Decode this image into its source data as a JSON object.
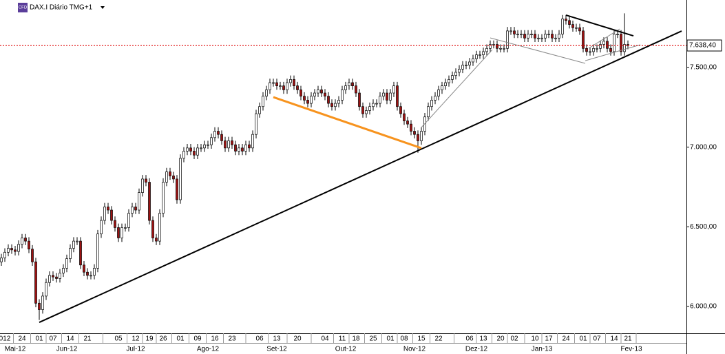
{
  "chart_data": {
    "type": "candlestick",
    "title": "DAX.I Diário TMG+1",
    "badge": "CFD",
    "up_color": "#ffffff",
    "down_color": "#9b1111",
    "wick_color": "#000000",
    "open": [
      6280,
      6305,
      6340,
      6365,
      6355,
      6345,
      6390,
      6430,
      6410,
      6360,
      6280,
      6020,
      5980,
      6065,
      6150,
      6195,
      6185,
      6175,
      6210,
      6240,
      6300,
      6365,
      6410,
      6410,
      6260,
      6215,
      6195,
      6195,
      6240,
      6455,
      6540,
      6625,
      6605,
      6540,
      6495,
      6430,
      6495,
      6495,
      6585,
      6625,
      6605,
      6715,
      6800,
      6780,
      6540,
      6430,
      6410,
      6585,
      6780,
      6845,
      6820,
      6800,
      6670,
      6930,
      6975,
      6995,
      6975,
      6950,
      6995,
      6995,
      7015,
      7015,
      7060,
      7100,
      7080,
      7040,
      6995,
      7040,
      7015,
      6975,
      6995,
      6975,
      7015,
      6995,
      7080,
      7210,
      7255,
      7320,
      7360,
      7405,
      7405,
      7385,
      7385,
      7360,
      7405,
      7425,
      7385,
      7360,
      7320,
      7295,
      7275,
      7320,
      7340,
      7360,
      7340,
      7320,
      7275,
      7255,
      7275,
      7295,
      7360,
      7385,
      7405,
      7385,
      7340,
      7255,
      7210,
      7230,
      7255,
      7275,
      7275,
      7320,
      7340,
      7295,
      7340,
      7385,
      7255,
      7210,
      7165,
      7145,
      7100,
      7080,
      7040,
      7100,
      7190,
      7255,
      7295,
      7320,
      7360,
      7385,
      7405,
      7425,
      7450,
      7470,
      7490,
      7515,
      7515,
      7535,
      7555,
      7580,
      7580,
      7600,
      7620,
      7645,
      7645,
      7620,
      7620,
      7620,
      7730,
      7730,
      7710,
      7710,
      7710,
      7685,
      7710,
      7710,
      7685,
      7685,
      7685,
      7710,
      7710,
      7685,
      7685,
      7710,
      7805,
      7795,
      7770,
      7750,
      7750,
      7730,
      7620,
      7600,
      7600,
      7620,
      7620,
      7645,
      7665,
      7620,
      7600,
      7710,
      7710,
      7600,
      7645
    ],
    "high": [
      6330,
      6365,
      6390,
      6390,
      6380,
      6415,
      6455,
      6455,
      6435,
      6385,
      6305,
      6045,
      6090,
      6175,
      6220,
      6220,
      6210,
      6235,
      6265,
      6325,
      6390,
      6435,
      6435,
      6435,
      6285,
      6240,
      6220,
      6265,
      6480,
      6565,
      6650,
      6650,
      6630,
      6565,
      6520,
      6520,
      6520,
      6610,
      6650,
      6650,
      6740,
      6825,
      6825,
      6805,
      6565,
      6455,
      6610,
      6805,
      6870,
      6870,
      6845,
      6825,
      6955,
      7000,
      7020,
      7020,
      7000,
      7020,
      7020,
      7040,
      7040,
      7085,
      7125,
      7125,
      7105,
      7065,
      7065,
      7065,
      7040,
      7020,
      7020,
      7040,
      7040,
      7105,
      7235,
      7280,
      7345,
      7385,
      7430,
      7430,
      7430,
      7410,
      7410,
      7430,
      7450,
      7450,
      7410,
      7385,
      7345,
      7320,
      7345,
      7365,
      7385,
      7385,
      7365,
      7345,
      7300,
      7300,
      7320,
      7385,
      7410,
      7430,
      7430,
      7410,
      7365,
      7280,
      7255,
      7280,
      7300,
      7300,
      7345,
      7365,
      7365,
      7365,
      7410,
      7410,
      7280,
      7235,
      7190,
      7170,
      7125,
      7105,
      7125,
      7215,
      7280,
      7320,
      7345,
      7385,
      7410,
      7430,
      7450,
      7475,
      7495,
      7515,
      7540,
      7540,
      7560,
      7580,
      7605,
      7605,
      7625,
      7645,
      7670,
      7670,
      7670,
      7645,
      7645,
      7755,
      7755,
      7755,
      7735,
      7735,
      7735,
      7735,
      7735,
      7735,
      7710,
      7710,
      7735,
      7735,
      7735,
      7710,
      7735,
      7830,
      7830,
      7820,
      7795,
      7775,
      7775,
      7755,
      7645,
      7625,
      7645,
      7645,
      7670,
      7690,
      7690,
      7645,
      7735,
      7735,
      7735,
      7840,
      7670
    ],
    "low": [
      6255,
      6280,
      6315,
      6330,
      6320,
      6320,
      6365,
      6385,
      6335,
      6255,
      5995,
      5915,
      5955,
      6040,
      6125,
      6160,
      6150,
      6150,
      6185,
      6215,
      6275,
      6340,
      6385,
      6235,
      6190,
      6170,
      6170,
      6170,
      6215,
      6430,
      6515,
      6580,
      6515,
      6470,
      6405,
      6405,
      6470,
      6470,
      6560,
      6580,
      6580,
      6690,
      6755,
      6515,
      6405,
      6385,
      6385,
      6560,
      6755,
      6795,
      6775,
      6645,
      6645,
      6905,
      6950,
      6950,
      6925,
      6925,
      6970,
      6970,
      6990,
      6990,
      7035,
      7055,
      7015,
      6970,
      6970,
      6990,
      6950,
      6950,
      6950,
      6950,
      6970,
      6970,
      7055,
      7185,
      7230,
      7295,
      7335,
      7380,
      7360,
      7360,
      7335,
      7335,
      7380,
      7360,
      7335,
      7295,
      7270,
      7250,
      7250,
      7295,
      7315,
      7315,
      7295,
      7250,
      7230,
      7230,
      7250,
      7270,
      7335,
      7360,
      7360,
      7315,
      7230,
      7185,
      7185,
      7205,
      7230,
      7250,
      7250,
      7295,
      7270,
      7270,
      7315,
      7230,
      7185,
      7140,
      7120,
      7075,
      7055,
      6965,
      7015,
      7075,
      7165,
      7230,
      7270,
      7295,
      7335,
      7360,
      7380,
      7400,
      7425,
      7445,
      7465,
      7490,
      7490,
      7510,
      7530,
      7555,
      7555,
      7575,
      7595,
      7620,
      7595,
      7595,
      7595,
      7595,
      7705,
      7685,
      7685,
      7685,
      7660,
      7660,
      7685,
      7660,
      7660,
      7660,
      7660,
      7685,
      7660,
      7660,
      7660,
      7685,
      7770,
      7745,
      7725,
      7725,
      7705,
      7595,
      7575,
      7575,
      7575,
      7595,
      7595,
      7620,
      7595,
      7575,
      7575,
      7685,
      7575,
      7575,
      7615
    ],
    "close": [
      6305,
      6340,
      6365,
      6355,
      6345,
      6390,
      6430,
      6410,
      6360,
      6280,
      6020,
      5980,
      6065,
      6150,
      6195,
      6185,
      6175,
      6210,
      6240,
      6300,
      6365,
      6410,
      6410,
      6260,
      6215,
      6195,
      6195,
      6240,
      6455,
      6540,
      6625,
      6605,
      6540,
      6495,
      6430,
      6495,
      6495,
      6585,
      6625,
      6605,
      6715,
      6800,
      6780,
      6540,
      6430,
      6410,
      6585,
      6780,
      6845,
      6820,
      6800,
      6670,
      6930,
      6975,
      6995,
      6975,
      6950,
      6995,
      6995,
      7015,
      7015,
      7060,
      7100,
      7080,
      7040,
      6995,
      7040,
      7015,
      6975,
      6995,
      6975,
      7015,
      6995,
      7080,
      7210,
      7255,
      7320,
      7360,
      7405,
      7405,
      7385,
      7385,
      7360,
      7405,
      7425,
      7385,
      7360,
      7320,
      7295,
      7275,
      7320,
      7340,
      7360,
      7340,
      7320,
      7275,
      7255,
      7275,
      7295,
      7360,
      7385,
      7405,
      7385,
      7340,
      7255,
      7210,
      7230,
      7255,
      7275,
      7275,
      7320,
      7340,
      7295,
      7340,
      7385,
      7255,
      7210,
      7165,
      7145,
      7100,
      7080,
      7040,
      7100,
      7190,
      7255,
      7295,
      7320,
      7360,
      7385,
      7405,
      7425,
      7450,
      7470,
      7490,
      7515,
      7515,
      7535,
      7555,
      7580,
      7580,
      7600,
      7620,
      7645,
      7645,
      7620,
      7620,
      7620,
      7730,
      7730,
      7710,
      7710,
      7710,
      7685,
      7710,
      7710,
      7685,
      7685,
      7685,
      7710,
      7710,
      7685,
      7685,
      7710,
      7805,
      7795,
      7770,
      7750,
      7750,
      7730,
      7620,
      7600,
      7600,
      7620,
      7620,
      7645,
      7665,
      7620,
      7600,
      7710,
      7710,
      7600,
      7645,
      7638.4
    ],
    "current_price": {
      "value": 7638.4,
      "label": "7.638,40",
      "color": "#dd0000"
    },
    "ylim": [
      5831,
      7924
    ],
    "yticks": [
      {
        "value": 6000,
        "label": "6.000,00"
      },
      {
        "value": 6500,
        "label": "6.500,00"
      },
      {
        "value": 7000,
        "label": "7.000,00"
      },
      {
        "value": 7500,
        "label": "7.500,00"
      }
    ],
    "xlim": [
      -0.4,
      199
    ],
    "xticks": [
      {
        "value": 1,
        "label": "012"
      },
      {
        "value": 6,
        "label": "24"
      },
      {
        "value": 11,
        "label": "01"
      },
      {
        "value": 15,
        "label": "07"
      },
      {
        "value": 20,
        "label": "14"
      },
      {
        "value": 25,
        "label": "21"
      },
      {
        "value": 34,
        "label": "05"
      },
      {
        "value": 39,
        "label": "12"
      },
      {
        "value": 43,
        "label": "19"
      },
      {
        "value": 47,
        "label": "26"
      },
      {
        "value": 52,
        "label": "01"
      },
      {
        "value": 57,
        "label": "09"
      },
      {
        "value": 62,
        "label": "16"
      },
      {
        "value": 67,
        "label": "23"
      },
      {
        "value": 75,
        "label": "06"
      },
      {
        "value": 80,
        "label": "13"
      },
      {
        "value": 86,
        "label": "20"
      },
      {
        "value": 94,
        "label": "04"
      },
      {
        "value": 99,
        "label": "11"
      },
      {
        "value": 103,
        "label": "18"
      },
      {
        "value": 108,
        "label": "25"
      },
      {
        "value": 113,
        "label": "01"
      },
      {
        "value": 117,
        "label": "08"
      },
      {
        "value": 122,
        "label": "15"
      },
      {
        "value": 127,
        "label": "22"
      },
      {
        "value": 136,
        "label": "06"
      },
      {
        "value": 140,
        "label": "13"
      },
      {
        "value": 145,
        "label": "20"
      },
      {
        "value": 149,
        "label": "02"
      },
      {
        "value": 155,
        "label": "10"
      },
      {
        "value": 159,
        "label": "17"
      },
      {
        "value": 164,
        "label": "24"
      },
      {
        "value": 169,
        "label": "01"
      },
      {
        "value": 173,
        "label": "07"
      },
      {
        "value": 178,
        "label": "14"
      },
      {
        "value": 182,
        "label": "21"
      }
    ],
    "months": [
      {
        "value": 4,
        "label": "Mai-12"
      },
      {
        "value": 19,
        "label": "Jun-12"
      },
      {
        "value": 39,
        "label": "Jul-12"
      },
      {
        "value": 60,
        "label": "Ago-12"
      },
      {
        "value": 80,
        "label": "Set-12"
      },
      {
        "value": 100,
        "label": "Out-12"
      },
      {
        "value": 120,
        "label": "Nov-12"
      },
      {
        "value": 138,
        "label": "Dez-12"
      },
      {
        "value": 157,
        "label": "Jan-13"
      },
      {
        "value": 183,
        "label": "Fev-13"
      }
    ],
    "trendlines": [
      {
        "color": "#000000",
        "width": 2,
        "x": [
          11,
          197.6
        ],
        "y": [
          5900,
          7729
        ]
      },
      {
        "color": "#f7931e",
        "width": 3,
        "x": [
          79,
          122
        ],
        "y": [
          7314,
          6994
        ]
      },
      {
        "color": "#888888",
        "width": 1,
        "x": [
          122,
          142.6
        ],
        "y": [
          7124,
          7612
        ]
      },
      {
        "color": "#888888",
        "width": 1,
        "x": [
          142,
          169.6
        ],
        "y": [
          7686,
          7526
        ]
      },
      {
        "color": "#888888",
        "width": 1,
        "x": [
          169.6,
          185.6
        ],
        "y": [
          7543,
          7643
        ]
      },
      {
        "color": "#888888",
        "width": 1,
        "x": [
          170.6,
          179.6
        ],
        "y": [
          7621,
          7742
        ]
      },
      {
        "color": "#000000",
        "width": 2,
        "x": [
          164,
          183.6
        ],
        "y": [
          7829,
          7699
        ]
      }
    ]
  }
}
